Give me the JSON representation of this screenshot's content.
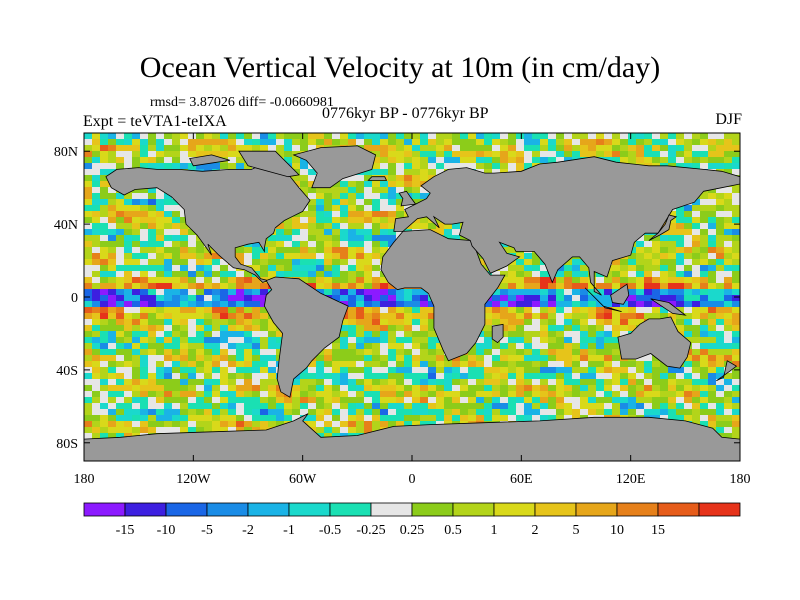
{
  "title": "Ocean Vertical Velocity at 10m (in cm/day)",
  "stats_text": "rmsd= 3.87026 diff= -0.0660981",
  "experiment_text": "Expt = teVTA1-teIXA",
  "period_text": "0776kyr BP - 0776kyr BP",
  "season_text": "DJF",
  "lat_labels": [
    {
      "label": "80N",
      "lat": 80
    },
    {
      "label": "40N",
      "lat": 40
    },
    {
      "label": "0",
      "lat": 0
    },
    {
      "label": "40S",
      "lat": -40
    },
    {
      "label": "80S",
      "lat": -80
    }
  ],
  "lon_labels": [
    {
      "label": "180",
      "lon": -180
    },
    {
      "label": "120W",
      "lon": -120
    },
    {
      "label": "60W",
      "lon": -60
    },
    {
      "label": "0",
      "lon": 0
    },
    {
      "label": "60E",
      "lon": 60
    },
    {
      "label": "120E",
      "lon": 120
    },
    {
      "label": "180",
      "lon": 180
    }
  ],
  "extent": {
    "lon": [
      -180,
      180
    ],
    "lat": [
      -90,
      90
    ]
  },
  "colorbar": {
    "colors": [
      "#8c1aff",
      "#3d1fe0",
      "#1a66e6",
      "#1a8ce6",
      "#1ab3e6",
      "#1ad9cc",
      "#1ae0b3",
      "#e6e6e6",
      "#8ccc1a",
      "#b3d41a",
      "#d9d91a",
      "#e6c41a",
      "#e6a61a",
      "#e6801a",
      "#e65c1a",
      "#e6331a"
    ],
    "labels": [
      "-15",
      "-10",
      "-5",
      "-2",
      "-1",
      "-0.5",
      "-0.25",
      "0.25",
      "0.5",
      "1",
      "2",
      "5",
      "10",
      "15"
    ]
  },
  "colors": {
    "land": "#999999",
    "coast": "#000000"
  }
}
